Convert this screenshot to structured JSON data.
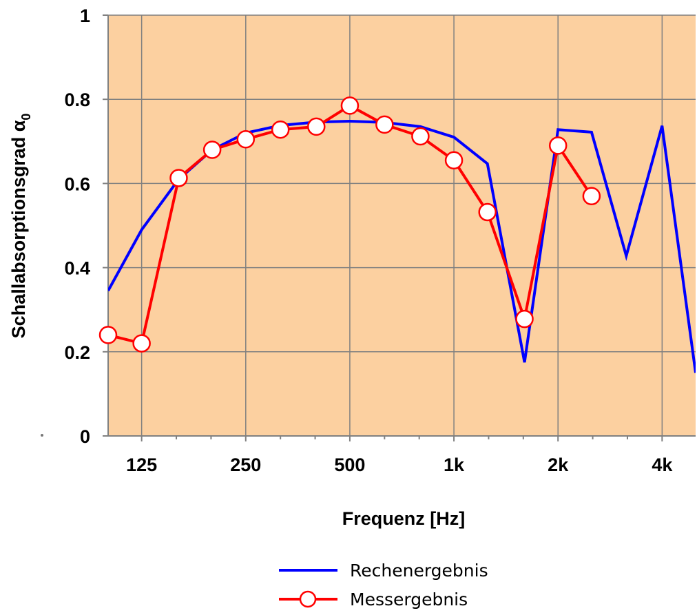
{
  "chart_data": {
    "type": "line",
    "xlabel": "Frequenz [Hz]",
    "ylabel_main": "Schallabsorptionsgrad α",
    "ylabel_sub": "0",
    "x_scale": "log",
    "xlim": [
      100,
      5000
    ],
    "ylim": [
      0,
      1
    ],
    "x_ticks": [
      {
        "value": 125,
        "label": "125"
      },
      {
        "value": 250,
        "label": "250"
      },
      {
        "value": 500,
        "label": "500"
      },
      {
        "value": 1000,
        "label": "1k"
      },
      {
        "value": 2000,
        "label": "2k"
      },
      {
        "value": 4000,
        "label": "4k"
      }
    ],
    "y_ticks": [
      {
        "value": 0,
        "label": "0"
      },
      {
        "value": 0.2,
        "label": "0.2"
      },
      {
        "value": 0.4,
        "label": "0.4"
      },
      {
        "value": 0.6,
        "label": "0.6"
      },
      {
        "value": 0.8,
        "label": "0.8"
      },
      {
        "value": 1,
        "label": "1"
      }
    ],
    "grid": true,
    "legend_position": "bottom-right",
    "plot_background": "#fcd0a0",
    "series": [
      {
        "name": "Rechenergebnis",
        "color": "#0000ff",
        "markers": false,
        "points": [
          {
            "x": 100,
            "y": 0.345
          },
          {
            "x": 125,
            "y": 0.49
          },
          {
            "x": 160,
            "y": 0.61
          },
          {
            "x": 200,
            "y": 0.68
          },
          {
            "x": 250,
            "y": 0.72
          },
          {
            "x": 315,
            "y": 0.738
          },
          {
            "x": 400,
            "y": 0.746
          },
          {
            "x": 500,
            "y": 0.748
          },
          {
            "x": 630,
            "y": 0.745
          },
          {
            "x": 800,
            "y": 0.735
          },
          {
            "x": 1000,
            "y": 0.71
          },
          {
            "x": 1250,
            "y": 0.647
          },
          {
            "x": 1600,
            "y": 0.175
          },
          {
            "x": 2000,
            "y": 0.728
          },
          {
            "x": 2500,
            "y": 0.722
          },
          {
            "x": 3150,
            "y": 0.428
          },
          {
            "x": 4000,
            "y": 0.737
          },
          {
            "x": 5000,
            "y": 0.15
          }
        ]
      },
      {
        "name": "Messergebnis",
        "color": "#ff0000",
        "markers": true,
        "points": [
          {
            "x": 100,
            "y": 0.24
          },
          {
            "x": 125,
            "y": 0.22
          },
          {
            "x": 160,
            "y": 0.613
          },
          {
            "x": 200,
            "y": 0.68
          },
          {
            "x": 250,
            "y": 0.705
          },
          {
            "x": 315,
            "y": 0.728
          },
          {
            "x": 400,
            "y": 0.735
          },
          {
            "x": 500,
            "y": 0.785
          },
          {
            "x": 630,
            "y": 0.74
          },
          {
            "x": 800,
            "y": 0.712
          },
          {
            "x": 1000,
            "y": 0.655
          },
          {
            "x": 1250,
            "y": 0.532
          },
          {
            "x": 1600,
            "y": 0.278
          },
          {
            "x": 2000,
            "y": 0.69
          },
          {
            "x": 2500,
            "y": 0.57
          }
        ]
      }
    ]
  }
}
